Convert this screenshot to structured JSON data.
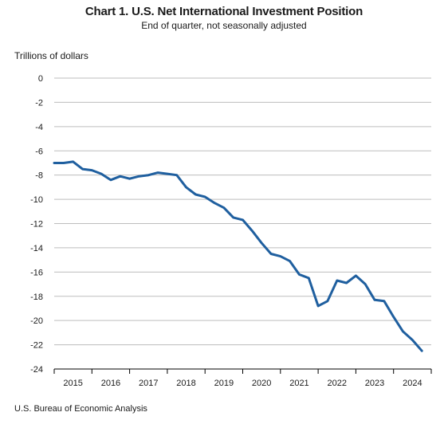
{
  "chart_data": {
    "type": "line",
    "title": "Chart 1. U.S. Net International Investment Position",
    "subtitle": "End of quarter, not seasonally adjusted",
    "ylabel": "Trillions of dollars",
    "xlabel": "",
    "source": "U.S. Bureau of Economic Analysis",
    "ylim": [
      -24,
      0
    ],
    "yticks": [
      0,
      -2,
      -4,
      -6,
      -8,
      -10,
      -12,
      -14,
      -16,
      -18,
      -20,
      -22,
      -24
    ],
    "year_labels": [
      "2015",
      "2016",
      "2017",
      "2018",
      "2019",
      "2020",
      "2021",
      "2022",
      "2023",
      "2024"
    ],
    "grid": true,
    "line_color": "#1f5f9f",
    "series": [
      {
        "quarters": [
          "2014 Q4",
          "2015 Q1",
          "2015 Q2",
          "2015 Q3",
          "2015 Q4",
          "2016 Q1",
          "2016 Q2",
          "2016 Q3",
          "2016 Q4",
          "2017 Q1",
          "2017 Q2",
          "2017 Q3",
          "2017 Q4",
          "2018 Q1",
          "2018 Q2",
          "2018 Q3",
          "2018 Q4",
          "2019 Q1",
          "2019 Q2",
          "2019 Q3",
          "2019 Q4",
          "2020 Q1",
          "2020 Q2",
          "2020 Q3",
          "2020 Q4",
          "2021 Q1",
          "2021 Q2",
          "2021 Q3",
          "2021 Q4",
          "2022 Q1",
          "2022 Q2",
          "2022 Q3",
          "2022 Q4",
          "2023 Q1",
          "2023 Q2",
          "2023 Q3",
          "2023 Q4",
          "2024 Q1",
          "2024 Q2",
          "2024 Q3"
        ],
        "values": [
          -7.0,
          -7.0,
          -6.9,
          -7.5,
          -7.6,
          -7.9,
          -8.4,
          -8.1,
          -8.3,
          -8.1,
          -8.0,
          -7.8,
          -7.9,
          -8.0,
          -9.0,
          -9.6,
          -9.8,
          -10.3,
          -10.7,
          -11.5,
          -11.7,
          -12.6,
          -13.6,
          -14.5,
          -14.7,
          -15.1,
          -16.2,
          -16.5,
          -18.8,
          -18.4,
          -16.7,
          -16.9,
          -16.3,
          -17.0,
          -18.3,
          -18.4,
          -19.7,
          -20.9,
          -21.6,
          -22.5
        ]
      }
    ]
  }
}
